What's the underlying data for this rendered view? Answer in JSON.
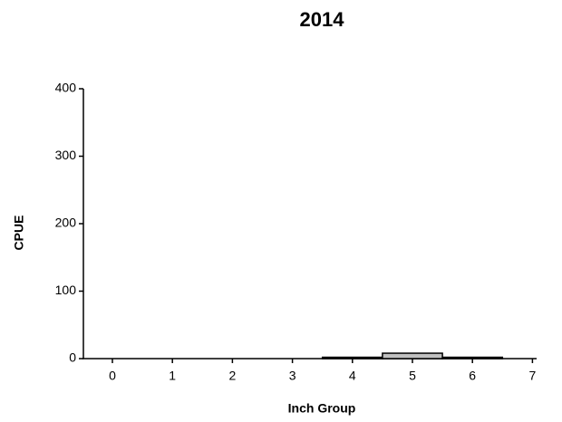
{
  "chart_data": {
    "type": "bar",
    "title": "2014",
    "x_label": "Inch Group",
    "y_label": "CPUE",
    "categories": [
      "0",
      "1",
      "2",
      "3",
      "4",
      "5",
      "6",
      "7"
    ],
    "values": [
      0,
      0,
      0,
      0,
      2,
      8,
      2,
      0
    ],
    "color": "#c0c0c0",
    "ylim": [
      0,
      400
    ],
    "yticks": [
      0,
      100,
      200,
      300,
      400
    ],
    "grid": false
  }
}
